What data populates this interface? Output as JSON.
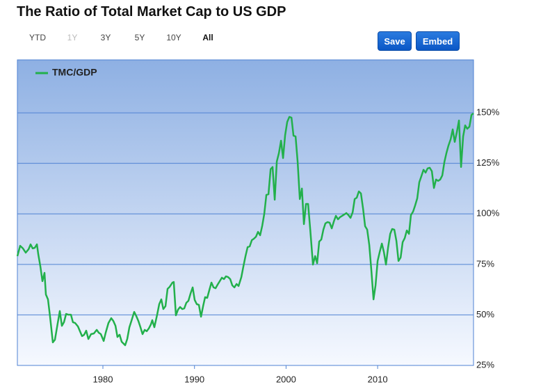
{
  "controls": {
    "ranges": [
      "YTD",
      "1Y",
      "3Y",
      "5Y",
      "10Y",
      "All"
    ],
    "actions": [
      "Save",
      "Embed"
    ]
  },
  "chart_data": {
    "type": "line",
    "title": "The Ratio of Total Market Cap to US GDP",
    "x": [
      1970.66,
      1970.96,
      1971.27,
      1971.57,
      1971.88,
      1972.1,
      1972.33,
      1972.56,
      1972.79,
      1972.94,
      1973.17,
      1973.39,
      1973.62,
      1973.77,
      1974.0,
      1974.23,
      1974.53,
      1974.76,
      1975.06,
      1975.29,
      1975.52,
      1975.75,
      1975.98,
      1976.2,
      1976.51,
      1976.73,
      1976.96,
      1977.27,
      1977.49,
      1977.72,
      1977.95,
      1978.18,
      1978.41,
      1978.71,
      1979.01,
      1979.32,
      1979.54,
      1979.77,
      1980.08,
      1980.3,
      1980.61,
      1980.91,
      1981.14,
      1981.37,
      1981.59,
      1981.82,
      1982.05,
      1982.43,
      1982.66,
      1982.89,
      1983.11,
      1983.42,
      1983.64,
      1983.87,
      1984.1,
      1984.33,
      1984.56,
      1984.78,
      1985.01,
      1985.24,
      1985.39,
      1985.62,
      1985.92,
      1986.15,
      1986.38,
      1986.6,
      1986.83,
      1987.06,
      1987.29,
      1987.59,
      1987.74,
      1987.97,
      1988.2,
      1988.43,
      1988.66,
      1988.88,
      1989.11,
      1989.34,
      1989.57,
      1989.8,
      1990.02,
      1990.25,
      1990.48,
      1990.71,
      1990.94,
      1991.16,
      1991.39,
      1991.62,
      1991.85,
      1992.08,
      1992.3,
      1992.53,
      1992.76,
      1992.99,
      1993.22,
      1993.44,
      1993.67,
      1993.9,
      1994.13,
      1994.36,
      1994.59,
      1994.81,
      1995.12,
      1995.34,
      1995.57,
      1995.8,
      1996.03,
      1996.26,
      1996.48,
      1996.71,
      1996.94,
      1997.17,
      1997.4,
      1997.62,
      1997.85,
      1998.08,
      1998.31,
      1998.53,
      1998.76,
      1998.99,
      1999.22,
      1999.45,
      1999.67,
      1999.9,
      2000.13,
      2000.36,
      2000.59,
      2000.81,
      2001.04,
      2001.27,
      2001.5,
      2001.73,
      2001.95,
      2002.18,
      2002.41,
      2002.64,
      2002.94,
      2003.17,
      2003.39,
      2003.62,
      2003.85,
      2004.08,
      2004.3,
      2004.53,
      2004.76,
      2004.99,
      2005.22,
      2005.44,
      2005.67,
      2005.9,
      2006.13,
      2006.36,
      2006.58,
      2006.81,
      2007.04,
      2007.27,
      2007.49,
      2007.72,
      2007.95,
      2008.18,
      2008.41,
      2008.63,
      2008.86,
      2009.09,
      2009.32,
      2009.55,
      2009.77,
      2010.0,
      2010.23,
      2010.46,
      2010.68,
      2010.91,
      2011.14,
      2011.37,
      2011.59,
      2011.82,
      2012.05,
      2012.28,
      2012.51,
      2012.73,
      2012.96,
      2013.19,
      2013.42,
      2013.64,
      2013.87,
      2014.1,
      2014.33,
      2014.55,
      2014.78,
      2015.01,
      2015.24,
      2015.46,
      2015.69,
      2015.92,
      2016.15,
      2016.38,
      2016.6,
      2016.83,
      2017.06,
      2017.29,
      2017.51,
      2017.74,
      2017.97,
      2018.2,
      2018.42,
      2018.65,
      2018.88,
      2019.11,
      2019.34,
      2019.56,
      2019.79,
      2020.02,
      2020.25,
      2020.47
    ],
    "series": [
      {
        "name": "TMC/GDP",
        "color": "#22b04b",
        "values": [
          79.1,
          84.2,
          82.9,
          80.8,
          82.5,
          84.9,
          82.9,
          83.2,
          84.9,
          80.1,
          73.9,
          66.7,
          70.8,
          60.1,
          57.7,
          49.1,
          36.4,
          37.7,
          45.7,
          51.9,
          44.6,
          46.4,
          50.5,
          50.1,
          50.1,
          46.4,
          46.0,
          44.3,
          41.9,
          39.5,
          40.2,
          42.2,
          38.1,
          40.5,
          40.8,
          42.6,
          41.2,
          40.5,
          37.1,
          41.2,
          46.0,
          48.4,
          47.0,
          44.6,
          39.1,
          40.2,
          36.7,
          35.0,
          38.1,
          43.9,
          47.0,
          51.5,
          49.5,
          47.0,
          43.9,
          40.5,
          42.6,
          41.9,
          43.3,
          45.3,
          47.4,
          43.9,
          50.1,
          55.3,
          57.7,
          52.9,
          54.3,
          62.9,
          63.9,
          66.0,
          66.3,
          49.8,
          52.6,
          53.9,
          52.9,
          53.2,
          56.0,
          57.0,
          60.5,
          63.6,
          57.4,
          55.3,
          55.0,
          49.1,
          54.3,
          58.8,
          58.4,
          62.2,
          66.0,
          63.6,
          63.2,
          65.0,
          66.7,
          68.4,
          67.7,
          69.1,
          68.7,
          67.7,
          64.6,
          63.6,
          65.3,
          64.3,
          68.7,
          73.9,
          79.1,
          83.5,
          83.9,
          87.0,
          87.7,
          88.7,
          91.1,
          89.4,
          94.2,
          100.1,
          109.4,
          109.7,
          122.1,
          123.2,
          107.0,
          125.9,
          130.0,
          136.2,
          127.6,
          139.0,
          145.5,
          148.0,
          147.6,
          138.7,
          138.3,
          125.6,
          107.3,
          112.5,
          94.9,
          104.9,
          104.9,
          92.2,
          74.9,
          79.1,
          75.6,
          86.3,
          87.3,
          92.2,
          95.3,
          95.9,
          95.6,
          92.8,
          96.3,
          99.0,
          97.3,
          98.4,
          99.0,
          99.7,
          100.4,
          99.4,
          98.0,
          100.8,
          107.3,
          108.0,
          111.1,
          110.1,
          102.5,
          93.9,
          92.2,
          84.6,
          71.5,
          57.7,
          64.6,
          76.7,
          81.1,
          85.3,
          81.1,
          74.9,
          83.2,
          90.1,
          92.5,
          92.2,
          86.6,
          76.7,
          78.4,
          86.0,
          88.0,
          91.8,
          90.1,
          99.4,
          101.1,
          104.2,
          107.7,
          115.6,
          118.7,
          121.8,
          120.4,
          122.5,
          122.8,
          121.1,
          112.8,
          117.0,
          116.3,
          117.0,
          119.0,
          125.6,
          130.0,
          133.8,
          136.9,
          141.8,
          135.6,
          140.4,
          146.2,
          123.2,
          138.3,
          143.8,
          142.1,
          143.1,
          149.0,
          149.7
        ]
      }
    ],
    "xlim": [
      1970.66,
      2020.47
    ],
    "xticks": [
      1980,
      1990,
      2000,
      2010
    ],
    "ylim": [
      25,
      176.2
    ],
    "yticks": [
      {
        "value": 25,
        "label": "25%"
      },
      {
        "value": 50,
        "label": "50%"
      },
      {
        "value": 75,
        "label": "75%"
      },
      {
        "value": 100,
        "label": "100%"
      },
      {
        "value": 125,
        "label": "125%"
      },
      {
        "value": 150,
        "label": "150%"
      }
    ],
    "grid": true,
    "legend": "upper left"
  }
}
